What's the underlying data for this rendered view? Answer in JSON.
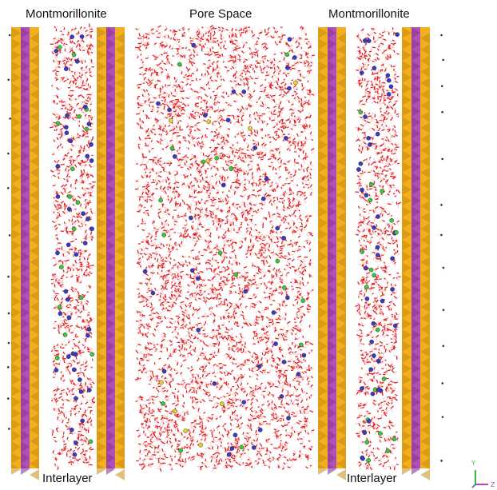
{
  "labels": {
    "left_top": "Montmorillonite",
    "center_top": "Pore Space",
    "right_top": "Montmorillonite",
    "left_bottom": "Interlayer",
    "right_bottom": "Interlayer"
  },
  "axes": {
    "y": "Y",
    "z": "Z"
  },
  "colors": {
    "tetrahedral": "#f2b01e",
    "tetrahedral_dark": "#c98a10",
    "octahedral": "#b04fb8",
    "octahedral_dark": "#8d3596",
    "water_oxygen": "#e02020",
    "water_hydrogen": "#f5c8c8",
    "cation_blue": "#3a3ac8",
    "cation_green": "#3cc83c",
    "cation_yellow": "#e8d030",
    "axis_y": "#33bb33",
    "axis_z": "#bb44bb",
    "axis_x": "#3399cc"
  }
}
